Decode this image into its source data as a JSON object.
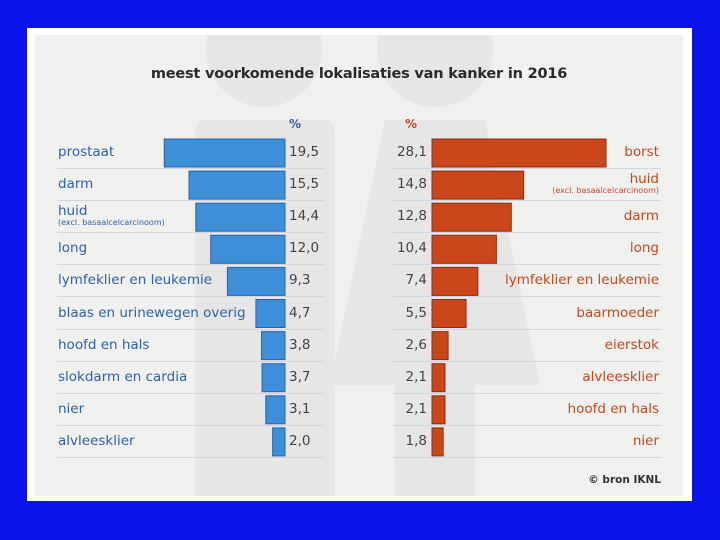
{
  "chart_data": {
    "type": "bar",
    "layout": "back-to-back horizontal bars",
    "title": "meest voorkomende lokalisaties van kanker in 2016",
    "unit_label": "%",
    "source": "© bron IKNL",
    "colors": {
      "men": "#3d8fd8",
      "women": "#c9471a",
      "men_text": "#2a62b0",
      "women_text": "#c9471a"
    },
    "xlim": [
      0,
      30
    ],
    "series": [
      {
        "name": "mannen",
        "items": [
          {
            "label": "prostaat",
            "value_text": "19,5",
            "value": 19.5
          },
          {
            "label": "darm",
            "value_text": "15,5",
            "value": 15.5
          },
          {
            "label": "huid",
            "sublabel": "(excl. basaalcelcarcinoom)",
            "value_text": "14,4",
            "value": 14.4
          },
          {
            "label": "long",
            "value_text": "12,0",
            "value": 12.0
          },
          {
            "label": "lymfeklier en leukemie",
            "value_text": "9,3",
            "value": 9.3
          },
          {
            "label": "blaas en urinewegen overig",
            "value_text": "4,7",
            "value": 4.7
          },
          {
            "label": "hoofd en hals",
            "value_text": "3,8",
            "value": 3.8
          },
          {
            "label": "slokdarm en cardia",
            "value_text": "3,7",
            "value": 3.7
          },
          {
            "label": "nier",
            "value_text": "3,1",
            "value": 3.1
          },
          {
            "label": "alvleesklier",
            "value_text": "2,0",
            "value": 2.0
          }
        ]
      },
      {
        "name": "vrouwen",
        "items": [
          {
            "label": "borst",
            "value_text": "28,1",
            "value": 28.1
          },
          {
            "label": "huid",
            "sublabel": "(excl. basaalcelcarcinoom)",
            "value_text": "14,8",
            "value": 14.8
          },
          {
            "label": "darm",
            "value_text": "12,8",
            "value": 12.8
          },
          {
            "label": "long",
            "value_text": "10,4",
            "value": 10.4
          },
          {
            "label": "lymfeklier en leukemie",
            "value_text": "7,4",
            "value": 7.4
          },
          {
            "label": "baarmoeder",
            "value_text": "5,5",
            "value": 5.5
          },
          {
            "label": "eierstok",
            "value_text": "2,6",
            "value": 2.6
          },
          {
            "label": "alvleesklier",
            "value_text": "2,1",
            "value": 2.1
          },
          {
            "label": "hoofd en hals",
            "value_text": "2,1",
            "value": 2.1
          },
          {
            "label": "nier",
            "value_text": "1,8",
            "value": 1.8
          }
        ]
      }
    ]
  }
}
